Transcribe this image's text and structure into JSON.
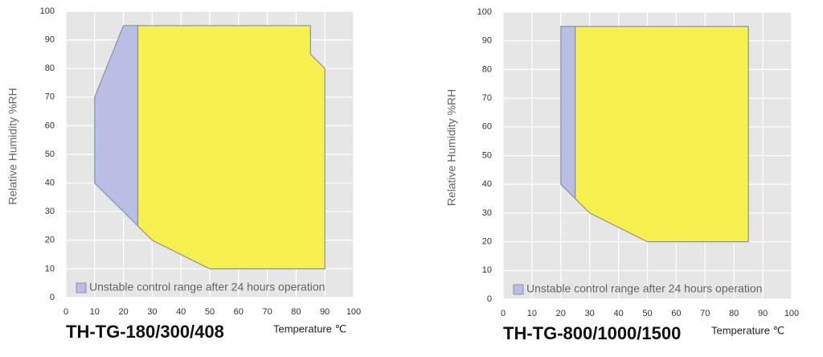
{
  "chart_data": [
    {
      "type": "polygon",
      "title": "TH-TG-180/300/408",
      "x_label": "Temperature ℃",
      "y_label": "Relative Humidity %RH",
      "xlim": [
        0,
        100
      ],
      "xticks": [
        0,
        10,
        20,
        30,
        40,
        50,
        60,
        70,
        80,
        90,
        100
      ],
      "ylim": [
        0,
        100
      ],
      "yticks": [
        0,
        10,
        20,
        30,
        40,
        50,
        60,
        70,
        80,
        90,
        100
      ],
      "grid": true,
      "series": [
        {
          "name": "Unstable control range after 24 hours operation",
          "color": "#babde4",
          "x": [
            10,
            10,
            20,
            25,
            25
          ],
          "y": [
            40,
            70,
            95,
            95,
            25
          ]
        },
        {
          "color": "#f6f14f",
          "x": [
            25,
            85,
            85,
            90,
            90,
            50,
            30,
            25
          ],
          "y": [
            95,
            95,
            85,
            80,
            10,
            10,
            20,
            25
          ]
        }
      ]
    },
    {
      "type": "polygon",
      "title": "TH-TG-800/1000/1500",
      "x_label": "Temperature ℃",
      "y_label": "Relative Humidity %RH",
      "xlim": [
        0,
        100
      ],
      "xticks": [
        0,
        10,
        20,
        30,
        40,
        50,
        60,
        70,
        80,
        90,
        100
      ],
      "ylim": [
        0,
        100
      ],
      "yticks": [
        0,
        10,
        20,
        30,
        40,
        50,
        60,
        70,
        80,
        90,
        100
      ],
      "grid": true,
      "series": [
        {
          "name": "Unstable control range after 24 hours operation",
          "color": "#babde4",
          "x": [
            20,
            20,
            25,
            25
          ],
          "y": [
            40,
            95,
            95,
            35
          ]
        },
        {
          "color": "#f6f14f",
          "x": [
            25,
            85,
            85,
            50,
            30,
            25
          ],
          "y": [
            95,
            95,
            20,
            20,
            30,
            35
          ]
        }
      ]
    }
  ]
}
